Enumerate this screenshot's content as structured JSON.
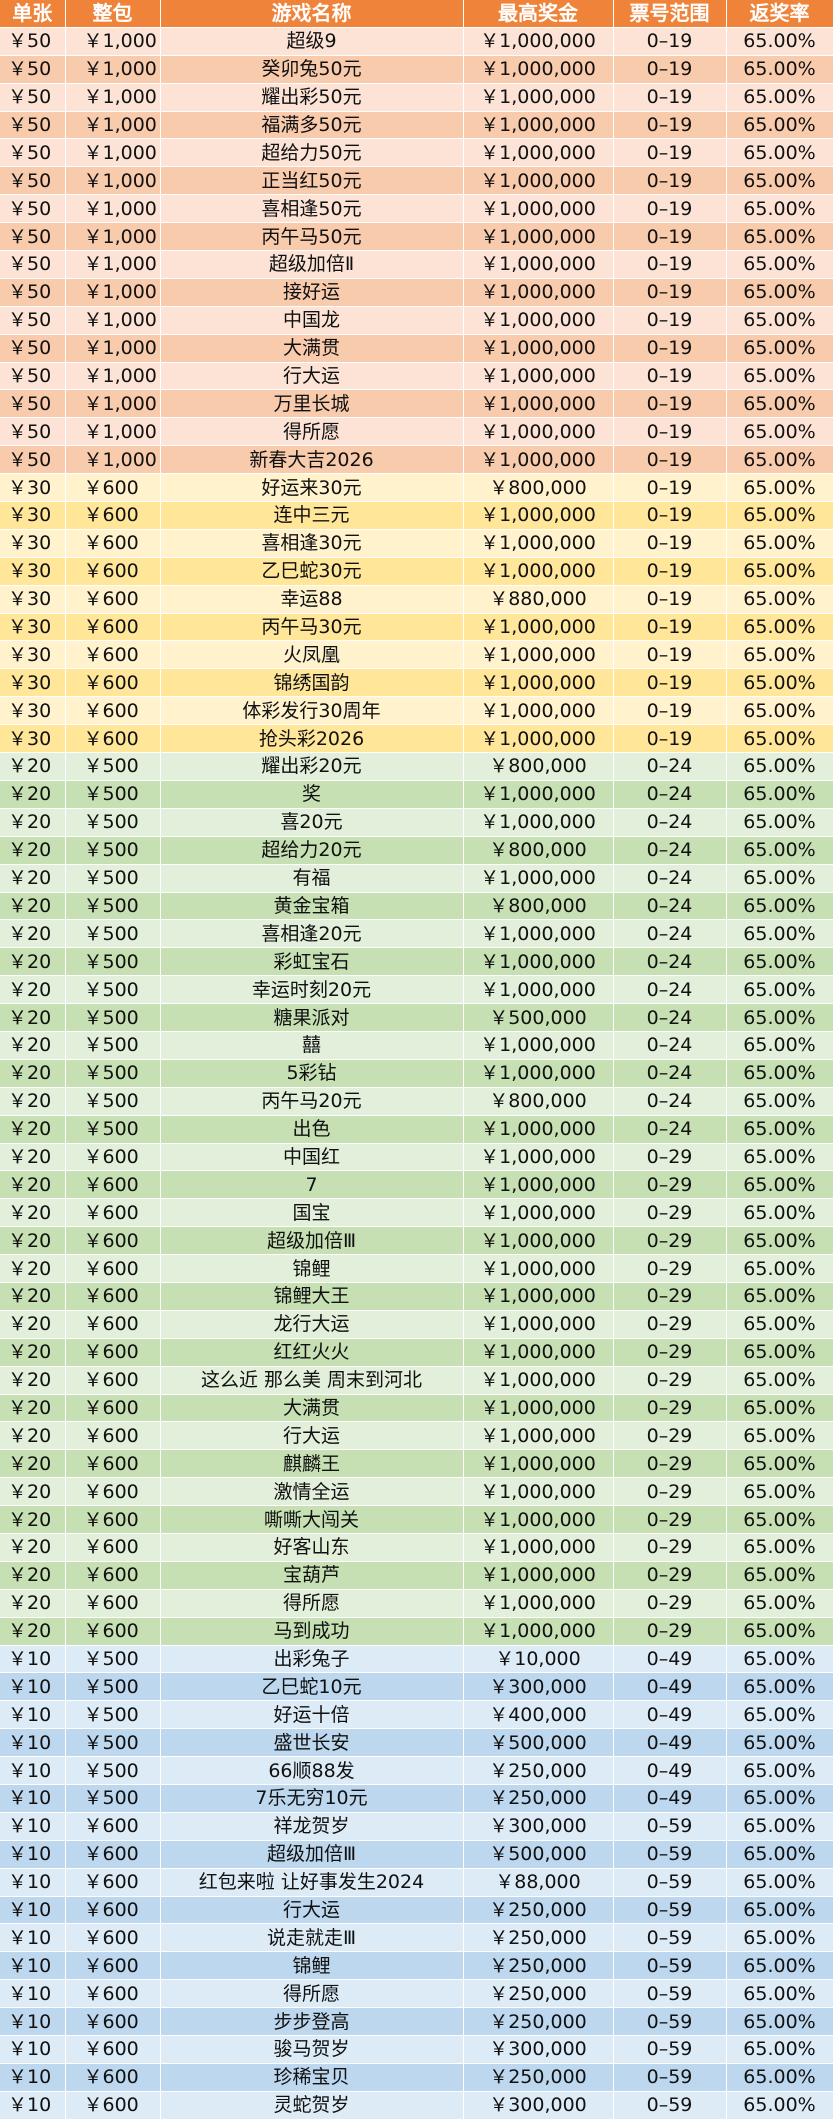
{
  "colors": {
    "header": "#ee8339",
    "g50": [
      "#fce3d6",
      "#f8cbad"
    ],
    "g30": [
      "#fff2cc",
      "#ffe699"
    ],
    "g20": [
      "#e2efda",
      "#c6e0b4"
    ],
    "g10": [
      "#ddebf7",
      "#bdd7ee"
    ]
  },
  "header": {
    "single": "单张",
    "pack": "整包",
    "name": "游戏名称",
    "prize": "最高奖金",
    "range": "票号范围",
    "rate": "返奖率"
  },
  "rows": [
    {
      "single": "￥50",
      "pack": "￥1,000",
      "name": "超级9",
      "prize": "￥1,000,000",
      "range": "0–19",
      "rate": "65.00%"
    },
    {
      "single": "￥50",
      "pack": "￥1,000",
      "name": "癸卯兔50元",
      "prize": "￥1,000,000",
      "range": "0–19",
      "rate": "65.00%"
    },
    {
      "single": "￥50",
      "pack": "￥1,000",
      "name": "耀出彩50元",
      "prize": "￥1,000,000",
      "range": "0–19",
      "rate": "65.00%"
    },
    {
      "single": "￥50",
      "pack": "￥1,000",
      "name": "福满多50元",
      "prize": "￥1,000,000",
      "range": "0–19",
      "rate": "65.00%"
    },
    {
      "single": "￥50",
      "pack": "￥1,000",
      "name": "超给力50元",
      "prize": "￥1,000,000",
      "range": "0–19",
      "rate": "65.00%"
    },
    {
      "single": "￥50",
      "pack": "￥1,000",
      "name": "正当红50元",
      "prize": "￥1,000,000",
      "range": "0–19",
      "rate": "65.00%"
    },
    {
      "single": "￥50",
      "pack": "￥1,000",
      "name": "喜相逢50元",
      "prize": "￥1,000,000",
      "range": "0–19",
      "rate": "65.00%"
    },
    {
      "single": "￥50",
      "pack": "￥1,000",
      "name": "丙午马50元",
      "prize": "￥1,000,000",
      "range": "0–19",
      "rate": "65.00%"
    },
    {
      "single": "￥50",
      "pack": "￥1,000",
      "name": "超级加倍Ⅱ",
      "prize": "￥1,000,000",
      "range": "0–19",
      "rate": "65.00%"
    },
    {
      "single": "￥50",
      "pack": "￥1,000",
      "name": "接好运",
      "prize": "￥1,000,000",
      "range": "0–19",
      "rate": "65.00%"
    },
    {
      "single": "￥50",
      "pack": "￥1,000",
      "name": "中国龙",
      "prize": "￥1,000,000",
      "range": "0–19",
      "rate": "65.00%"
    },
    {
      "single": "￥50",
      "pack": "￥1,000",
      "name": "大满贯",
      "prize": "￥1,000,000",
      "range": "0–19",
      "rate": "65.00%"
    },
    {
      "single": "￥50",
      "pack": "￥1,000",
      "name": "行大运",
      "prize": "￥1,000,000",
      "range": "0–19",
      "rate": "65.00%"
    },
    {
      "single": "￥50",
      "pack": "￥1,000",
      "name": "万里长城",
      "prize": "￥1,000,000",
      "range": "0–19",
      "rate": "65.00%"
    },
    {
      "single": "￥50",
      "pack": "￥1,000",
      "name": "得所愿",
      "prize": "￥1,000,000",
      "range": "0–19",
      "rate": "65.00%"
    },
    {
      "single": "￥50",
      "pack": "￥1,000",
      "name": "新春大吉2026",
      "prize": "￥1,000,000",
      "range": "0–19",
      "rate": "65.00%"
    },
    {
      "single": "￥30",
      "pack": "￥600",
      "name": "好运来30元",
      "prize": "￥800,000",
      "range": "0–19",
      "rate": "65.00%"
    },
    {
      "single": "￥30",
      "pack": "￥600",
      "name": "连中三元",
      "prize": "￥1,000,000",
      "range": "0–19",
      "rate": "65.00%"
    },
    {
      "single": "￥30",
      "pack": "￥600",
      "name": "喜相逢30元",
      "prize": "￥1,000,000",
      "range": "0–19",
      "rate": "65.00%"
    },
    {
      "single": "￥30",
      "pack": "￥600",
      "name": "乙巳蛇30元",
      "prize": "￥1,000,000",
      "range": "0–19",
      "rate": "65.00%"
    },
    {
      "single": "￥30",
      "pack": "￥600",
      "name": "幸运88",
      "prize": "￥880,000",
      "range": "0–19",
      "rate": "65.00%"
    },
    {
      "single": "￥30",
      "pack": "￥600",
      "name": "丙午马30元",
      "prize": "￥1,000,000",
      "range": "0–19",
      "rate": "65.00%"
    },
    {
      "single": "￥30",
      "pack": "￥600",
      "name": "火凤凰",
      "prize": "￥1,000,000",
      "range": "0–19",
      "rate": "65.00%"
    },
    {
      "single": "￥30",
      "pack": "￥600",
      "name": "锦绣国韵",
      "prize": "￥1,000,000",
      "range": "0–19",
      "rate": "65.00%"
    },
    {
      "single": "￥30",
      "pack": "￥600",
      "name": "体彩发行30周年",
      "prize": "￥1,000,000",
      "range": "0–19",
      "rate": "65.00%"
    },
    {
      "single": "￥30",
      "pack": "￥600",
      "name": "抢头彩2026",
      "prize": "￥1,000,000",
      "range": "0–19",
      "rate": "65.00%"
    },
    {
      "single": "￥20",
      "pack": "￥500",
      "name": "耀出彩20元",
      "prize": "￥800,000",
      "range": "0–24",
      "rate": "65.00%"
    },
    {
      "single": "￥20",
      "pack": "￥500",
      "name": "奖",
      "prize": "￥1,000,000",
      "range": "0–24",
      "rate": "65.00%"
    },
    {
      "single": "￥20",
      "pack": "￥500",
      "name": "喜20元",
      "prize": "￥1,000,000",
      "range": "0–24",
      "rate": "65.00%"
    },
    {
      "single": "￥20",
      "pack": "￥500",
      "name": "超给力20元",
      "prize": "￥800,000",
      "range": "0–24",
      "rate": "65.00%"
    },
    {
      "single": "￥20",
      "pack": "￥500",
      "name": "有福",
      "prize": "￥1,000,000",
      "range": "0–24",
      "rate": "65.00%"
    },
    {
      "single": "￥20",
      "pack": "￥500",
      "name": "黄金宝箱",
      "prize": "￥800,000",
      "range": "0–24",
      "rate": "65.00%"
    },
    {
      "single": "￥20",
      "pack": "￥500",
      "name": "喜相逢20元",
      "prize": "￥1,000,000",
      "range": "0–24",
      "rate": "65.00%"
    },
    {
      "single": "￥20",
      "pack": "￥500",
      "name": "彩虹宝石",
      "prize": "￥1,000,000",
      "range": "0–24",
      "rate": "65.00%"
    },
    {
      "single": "￥20",
      "pack": "￥500",
      "name": "幸运时刻20元",
      "prize": "￥1,000,000",
      "range": "0–24",
      "rate": "65.00%"
    },
    {
      "single": "￥20",
      "pack": "￥500",
      "name": "糖果派对",
      "prize": "￥500,000",
      "range": "0–24",
      "rate": "65.00%"
    },
    {
      "single": "￥20",
      "pack": "￥500",
      "name": "囍",
      "prize": "￥1,000,000",
      "range": "0–24",
      "rate": "65.00%"
    },
    {
      "single": "￥20",
      "pack": "￥500",
      "name": "5彩钻",
      "prize": "￥1,000,000",
      "range": "0–24",
      "rate": "65.00%"
    },
    {
      "single": "￥20",
      "pack": "￥500",
      "name": "丙午马20元",
      "prize": "￥800,000",
      "range": "0–24",
      "rate": "65.00%"
    },
    {
      "single": "￥20",
      "pack": "￥500",
      "name": "出色",
      "prize": "￥1,000,000",
      "range": "0–24",
      "rate": "65.00%"
    },
    {
      "single": "￥20",
      "pack": "￥600",
      "name": "中国红",
      "prize": "￥1,000,000",
      "range": "0–29",
      "rate": "65.00%"
    },
    {
      "single": "￥20",
      "pack": "￥600",
      "name": "7",
      "prize": "￥1,000,000",
      "range": "0–29",
      "rate": "65.00%"
    },
    {
      "single": "￥20",
      "pack": "￥600",
      "name": "国宝",
      "prize": "￥1,000,000",
      "range": "0–29",
      "rate": "65.00%"
    },
    {
      "single": "￥20",
      "pack": "￥600",
      "name": "超级加倍Ⅲ",
      "prize": "￥1,000,000",
      "range": "0–29",
      "rate": "65.00%"
    },
    {
      "single": "￥20",
      "pack": "￥600",
      "name": "锦鲤",
      "prize": "￥1,000,000",
      "range": "0–29",
      "rate": "65.00%"
    },
    {
      "single": "￥20",
      "pack": "￥600",
      "name": "锦鲤大王",
      "prize": "￥1,000,000",
      "range": "0–29",
      "rate": "65.00%"
    },
    {
      "single": "￥20",
      "pack": "￥600",
      "name": "龙行大运",
      "prize": "￥1,000,000",
      "range": "0–29",
      "rate": "65.00%"
    },
    {
      "single": "￥20",
      "pack": "￥600",
      "name": "红红火火",
      "prize": "￥1,000,000",
      "range": "0–29",
      "rate": "65.00%"
    },
    {
      "single": "￥20",
      "pack": "￥600",
      "name": "这么近 那么美 周末到河北",
      "prize": "￥1,000,000",
      "range": "0–29",
      "rate": "65.00%"
    },
    {
      "single": "￥20",
      "pack": "￥600",
      "name": "大满贯",
      "prize": "￥1,000,000",
      "range": "0–29",
      "rate": "65.00%"
    },
    {
      "single": "￥20",
      "pack": "￥600",
      "name": "行大运",
      "prize": "￥1,000,000",
      "range": "0–29",
      "rate": "65.00%"
    },
    {
      "single": "￥20",
      "pack": "￥600",
      "name": "麒麟王",
      "prize": "￥1,000,000",
      "range": "0–29",
      "rate": "65.00%"
    },
    {
      "single": "￥20",
      "pack": "￥600",
      "name": "激情全运",
      "prize": "￥1,000,000",
      "range": "0–29",
      "rate": "65.00%"
    },
    {
      "single": "￥20",
      "pack": "￥600",
      "name": "嘶嘶大闯关",
      "prize": "￥1,000,000",
      "range": "0–29",
      "rate": "65.00%"
    },
    {
      "single": "￥20",
      "pack": "￥600",
      "name": "好客山东",
      "prize": "￥1,000,000",
      "range": "0–29",
      "rate": "65.00%"
    },
    {
      "single": "￥20",
      "pack": "￥600",
      "name": "宝葫芦",
      "prize": "￥1,000,000",
      "range": "0–29",
      "rate": "65.00%"
    },
    {
      "single": "￥20",
      "pack": "￥600",
      "name": "得所愿",
      "prize": "￥1,000,000",
      "range": "0–29",
      "rate": "65.00%"
    },
    {
      "single": "￥20",
      "pack": "￥600",
      "name": "马到成功",
      "prize": "￥1,000,000",
      "range": "0–29",
      "rate": "65.00%"
    },
    {
      "single": "￥10",
      "pack": "￥500",
      "name": "出彩兔子",
      "prize": "￥10,000",
      "range": "0–49",
      "rate": "65.00%"
    },
    {
      "single": "￥10",
      "pack": "￥500",
      "name": "乙巳蛇10元",
      "prize": "￥300,000",
      "range": "0–49",
      "rate": "65.00%"
    },
    {
      "single": "￥10",
      "pack": "￥500",
      "name": "好运十倍",
      "prize": "￥400,000",
      "range": "0–49",
      "rate": "65.00%"
    },
    {
      "single": "￥10",
      "pack": "￥500",
      "name": "盛世长安",
      "prize": "￥500,000",
      "range": "0–49",
      "rate": "65.00%"
    },
    {
      "single": "￥10",
      "pack": "￥500",
      "name": "66顺88发",
      "prize": "￥250,000",
      "range": "0–49",
      "rate": "65.00%"
    },
    {
      "single": "￥10",
      "pack": "￥500",
      "name": "7乐无穷10元",
      "prize": "￥250,000",
      "range": "0–49",
      "rate": "65.00%"
    },
    {
      "single": "￥10",
      "pack": "￥600",
      "name": "祥龙贺岁",
      "prize": "￥300,000",
      "range": "0–59",
      "rate": "65.00%"
    },
    {
      "single": "￥10",
      "pack": "￥600",
      "name": "超级加倍Ⅲ",
      "prize": "￥500,000",
      "range": "0–59",
      "rate": "65.00%"
    },
    {
      "single": "￥10",
      "pack": "￥600",
      "name": "红包来啦 让好事发生2024",
      "prize": "￥88,000",
      "range": "0–59",
      "rate": "65.00%"
    },
    {
      "single": "￥10",
      "pack": "￥600",
      "name": "行大运",
      "prize": "￥250,000",
      "range": "0–59",
      "rate": "65.00%"
    },
    {
      "single": "￥10",
      "pack": "￥600",
      "name": "说走就走Ⅲ",
      "prize": "￥250,000",
      "range": "0–59",
      "rate": "65.00%"
    },
    {
      "single": "￥10",
      "pack": "￥600",
      "name": "锦鲤",
      "prize": "￥250,000",
      "range": "0–59",
      "rate": "65.00%"
    },
    {
      "single": "￥10",
      "pack": "￥600",
      "name": "得所愿",
      "prize": "￥250,000",
      "range": "0–59",
      "rate": "65.00%"
    },
    {
      "single": "￥10",
      "pack": "￥600",
      "name": "步步登高",
      "prize": "￥250,000",
      "range": "0–59",
      "rate": "65.00%"
    },
    {
      "single": "￥10",
      "pack": "￥600",
      "name": "骏马贺岁",
      "prize": "￥300,000",
      "range": "0–59",
      "rate": "65.00%"
    },
    {
      "single": "￥10",
      "pack": "￥600",
      "name": "珍稀宝贝",
      "prize": "￥250,000",
      "range": "0–59",
      "rate": "65.00%"
    },
    {
      "single": "￥10",
      "pack": "￥600",
      "name": "灵蛇贺岁",
      "prize": "￥300,000",
      "range": "0–59",
      "rate": "65.00%"
    }
  ]
}
